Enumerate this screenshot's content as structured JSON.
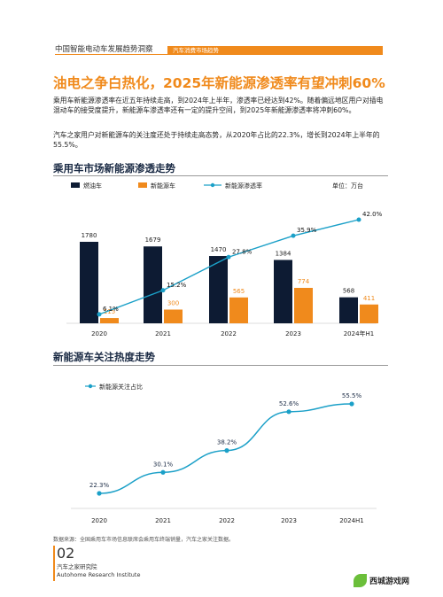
{
  "header": {
    "title": "中国智能电动车发展趋势洞察",
    "tab": "汽车消费市场趋势"
  },
  "headline": "油电之争白热化，2025年新能源渗透率有望冲刺60%",
  "paragraphs": [
    "乘用车新能源渗透率在近五年持续走高，到2024年上半年，渗透率已经达到42%。随着偏远地区用户对插电混动车的接受度提升，新能源车渗透率还有一定的提升空间，到2025年新能源渗透率将冲刺60%。",
    "汽车之家用户对新能源车的关注度还处于持续走高态势，从2020年占比的22.3%，增长到2024年上半年的55.5%。"
  ],
  "chart1_title": "乘用车市场新能源渗透走势",
  "chart2_title": "新能源车关注热度走势",
  "source": "数据来源：全国乘用车市场信息联席会乘用车终端销量，汽车之家关注数据。",
  "page_number": "02",
  "institute": [
    "汽车之家研究院",
    "Autohome Research Institute"
  ],
  "watermark": "西城游戏网",
  "colors": {
    "accent": "#f08a1c",
    "dark_bar": "#0d1b33",
    "line": "#1ba0c8"
  },
  "chart_data": [
    {
      "type": "bar",
      "title": "乘用车市场新能源渗透走势",
      "unit_label": "单位：万台",
      "categories": [
        "2020",
        "2021",
        "2022",
        "2023",
        "2024年H1"
      ],
      "series": [
        {
          "name": "燃油车",
          "values": [
            1780,
            1679,
            1470,
            1384,
            568
          ]
        },
        {
          "name": "新能源车",
          "values": [
            115,
            300,
            565,
            774,
            411
          ]
        },
        {
          "name": "新能源渗透率",
          "values": [
            6.1,
            15.2,
            27.8,
            35.9,
            42.0
          ],
          "labels": [
            "6.1%",
            "15.2%",
            "27.8%",
            "35.9%",
            "42.0%"
          ]
        }
      ],
      "legend_placement": "top-left"
    },
    {
      "type": "line",
      "title": "新能源车关注热度走势",
      "categories": [
        "2020",
        "2021",
        "2022",
        "2023",
        "2024H1"
      ],
      "series": [
        {
          "name": "新能源关注占比",
          "values": [
            22.3,
            30.1,
            38.2,
            52.6,
            55.5
          ],
          "labels": [
            "22.3%",
            "30.1%",
            "38.2%",
            "52.6%",
            "55.5%"
          ]
        }
      ],
      "legend_placement": "top-left"
    }
  ]
}
